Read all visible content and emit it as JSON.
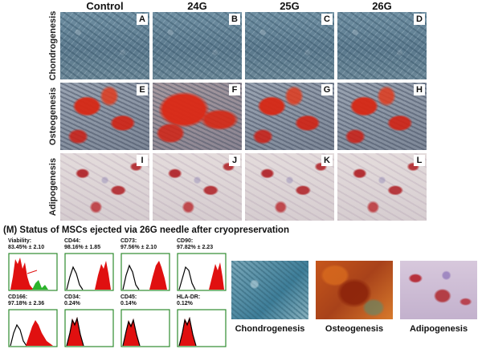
{
  "columns": [
    "Control",
    "24G",
    "25G",
    "26G"
  ],
  "rows": [
    "Chondrogenesis",
    "Osteogenesis",
    "Adipogenesis"
  ],
  "panel_letters": [
    "A",
    "B",
    "C",
    "D",
    "E",
    "F",
    "G",
    "H",
    "I",
    "J",
    "K",
    "L"
  ],
  "section_title": "(M) Status of MSCs ejected via 26G needle after cryopreservation",
  "flow_panels": [
    {
      "name": "Viability:",
      "value": "83.45% ± 2.10"
    },
    {
      "name": "CD44:",
      "value": "98.16% ± 1.85"
    },
    {
      "name": "CD73:",
      "value": "97.56% ± 2.10"
    },
    {
      "name": "CD90:",
      "value": "97.82% ± 2.23"
    },
    {
      "name": "CD166:",
      "value": "97.18% ± 2.36"
    },
    {
      "name": "CD34:",
      "value": "0.24%"
    },
    {
      "name": "CD45:",
      "value": "0.14%"
    },
    {
      "name": "HLA-DR:",
      "value": "0.12%"
    }
  ],
  "differentiation_labels": [
    "Chondrogenesis",
    "Osteogenesis",
    "Adipogenesis"
  ],
  "colors": {
    "histogram_frame": "#2e8b2e",
    "histogram_fill": "#e01010",
    "histogram_line": "#000000"
  }
}
